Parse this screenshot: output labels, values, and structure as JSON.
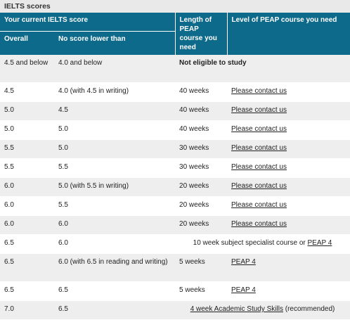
{
  "caption": "IELTS scores",
  "header": {
    "current_score": "Your current IELTS score",
    "overall": "Overall",
    "no_lower": "No score lower than",
    "length": "Length of PEAP course you need",
    "level": "Level of PEAP course you need"
  },
  "rows": [
    {
      "overall": "4.5 and below",
      "min": "4.0 and below",
      "span_text": "Not eligible to study"
    },
    {
      "overall": "4.5",
      "min": "4.0 (with 4.5 in writing)",
      "length": "40 weeks",
      "level": "Please contact us"
    },
    {
      "overall": "5.0",
      "min": "4.5",
      "length": "40 weeks",
      "level": "Please contact us"
    },
    {
      "overall": "5.0",
      "min": "5.0",
      "length": "40 weeks",
      "level": "Please contact us"
    },
    {
      "overall": "5.5",
      "min": "5.0",
      "length": "30 weeks",
      "level": "Please contact us"
    },
    {
      "overall": "5.5",
      "min": "5.5",
      "length": "30 weeks",
      "level": "Please contact us"
    },
    {
      "overall": "6.0",
      "min": "5.0 (with 5.5 in writing)",
      "length": "20 weeks",
      "level": "Please contact us"
    },
    {
      "overall": "6.0",
      "min": "5.5",
      "length": "20 weeks",
      "level": "Please contact us"
    },
    {
      "overall": "6.0",
      "min": "6.0",
      "length": "20 weeks",
      "level": "Please contact us"
    },
    {
      "overall": "6.5",
      "min": "6.0",
      "span_text": "10 week subject specialist course or",
      "span_link": "PEAP 4"
    },
    {
      "overall": "6.5",
      "min": "6.0 (with 6.5 in reading and writing)",
      "length": "5 weeks",
      "level": "PEAP 4"
    },
    {
      "overall": "6.5",
      "min": "6.5",
      "length": "5 weeks",
      "level": "PEAP 4"
    },
    {
      "overall": "7.0",
      "min": "6.5",
      "span_link": "4 week Academic Study Skills",
      "span_suffix": "(recommended)"
    }
  ]
}
